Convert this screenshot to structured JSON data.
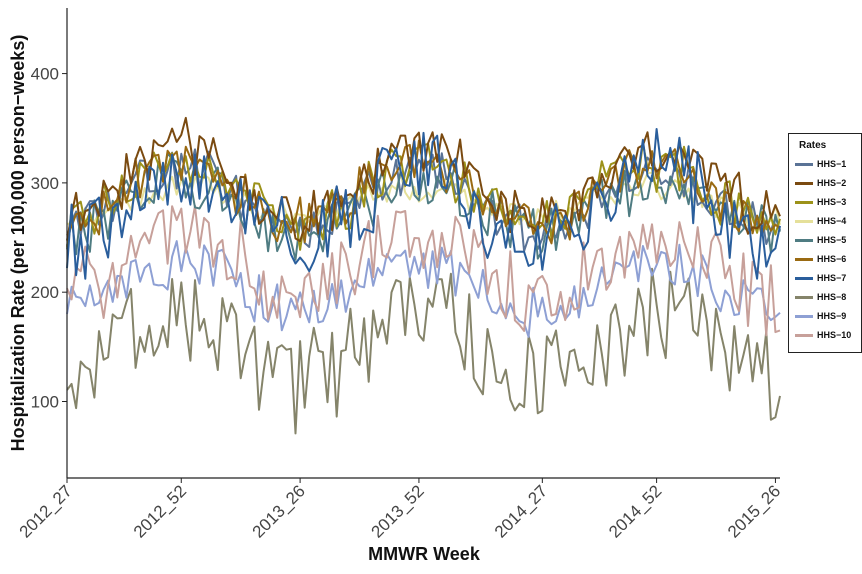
{
  "chart_data": {
    "type": "line",
    "title": "",
    "xlabel": "MMWR Week",
    "ylabel": "Hospitalization Rate (per 100,000 person−weeks)",
    "x_tick_labels": [
      "2012_27",
      "2012_52",
      "2013_26",
      "2013_52",
      "2014_27",
      "2014_52",
      "2015_26"
    ],
    "x_tick_index": [
      0,
      25,
      51,
      77,
      104,
      129,
      155
    ],
    "y_ticks": [
      100,
      200,
      300,
      400
    ],
    "ylim": [
      30,
      460
    ],
    "grid": false,
    "legend_placement": "right",
    "legend_title": "Rates",
    "series": [
      {
        "name": "HHS−1",
        "color": "#5a7396",
        "base": 285,
        "amp": 28,
        "noise": 18,
        "seed": 11
      },
      {
        "name": "HHS−2",
        "color": "#7a4a10",
        "base": 300,
        "amp": 32,
        "noise": 22,
        "seed": 23
      },
      {
        "name": "HHS−3",
        "color": "#9c9219",
        "base": 290,
        "amp": 30,
        "noise": 22,
        "seed": 37
      },
      {
        "name": "HHS−4",
        "color": "#e5e09a",
        "base": 282,
        "amp": 14,
        "noise": 12,
        "seed": 41
      },
      {
        "name": "HHS−5",
        "color": "#4f7c82",
        "base": 278,
        "amp": 26,
        "noise": 22,
        "seed": 53
      },
      {
        "name": "HHS−6",
        "color": "#9a6a12",
        "base": 290,
        "amp": 28,
        "noise": 20,
        "seed": 67
      },
      {
        "name": "HHS−7",
        "color": "#2a5e9c",
        "base": 280,
        "amp": 36,
        "noise": 34,
        "seed": 79
      },
      {
        "name": "HHS−8",
        "color": "#85846a",
        "base": 150,
        "amp": 30,
        "noise": 42,
        "seed": 83
      },
      {
        "name": "HHS−9",
        "color": "#8ea0d4",
        "base": 205,
        "amp": 22,
        "noise": 20,
        "seed": 97
      },
      {
        "name": "HHS−10",
        "color": "#c7a09a",
        "base": 225,
        "amp": 30,
        "noise": 32,
        "seed": 101
      }
    ],
    "n_points": 157
  }
}
